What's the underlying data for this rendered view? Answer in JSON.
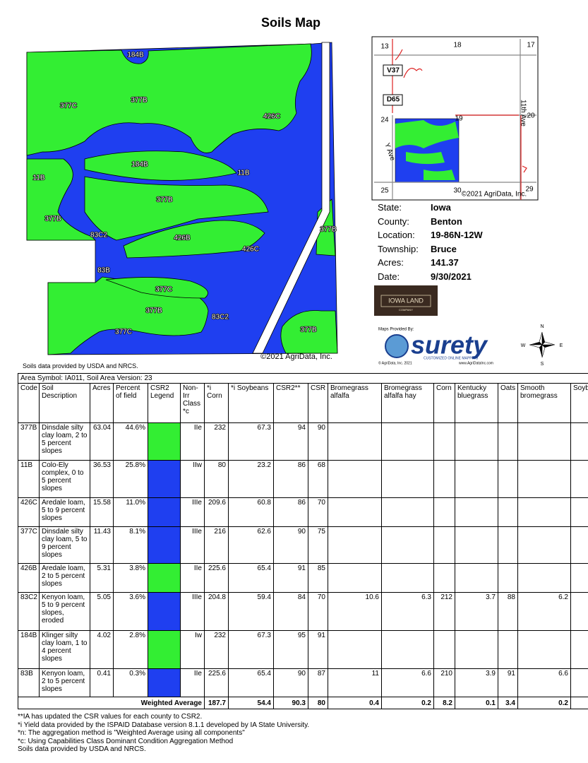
{
  "header": {
    "title": "Soils Map"
  },
  "map": {
    "labels": [
      "184B",
      "377B",
      "377C",
      "426C",
      "11B",
      "184B",
      "11B",
      "377B",
      "377B",
      "83C2",
      "426B",
      "426C",
      "377B",
      "83B",
      "377C",
      "377B",
      "83C2",
      "377C",
      "377B"
    ],
    "copyright": "©2021 AgriData, Inc."
  },
  "inset": {
    "labels": [
      "13",
      "18",
      "17",
      "V37",
      "D65",
      "24",
      "19",
      "20",
      "11th Ave",
      "Y Ave",
      "25",
      "30",
      "29"
    ],
    "copyright": "©2021 AgriData, Inc."
  },
  "info": {
    "rows": [
      [
        "State:",
        "Iowa"
      ],
      [
        "County:",
        "Benton"
      ],
      [
        "Location:",
        "19-86N-12W"
      ],
      [
        "Township:",
        "Bruce"
      ],
      [
        "Acres:",
        "141.37"
      ],
      [
        "Date:",
        "9/30/2021"
      ]
    ]
  },
  "logos": {
    "iowa_land": "IOWA LAND",
    "iowa_land_sub": "COMPANY",
    "maps_by": "Maps Provided By:",
    "surety": "surety",
    "surety_sub": "CUSTOMIZED ONLINE MAPPING",
    "surety_copy": "© AgriData, Inc. 2021",
    "surety_url": "www.AgriDataInc.com"
  },
  "compass": {
    "n": "N",
    "s": "S",
    "e": "E",
    "w": "W"
  },
  "source_note": "Soils data provided by USDA and NRCS.",
  "table": {
    "area_symbol": "Area Symbol: IA011, Soil Area Version: 23",
    "columns": [
      {
        "key": "code",
        "label": "Code"
      },
      {
        "key": "description",
        "label": "Soil Description"
      },
      {
        "key": "acres",
        "label": "Acres"
      },
      {
        "key": "percent",
        "label": "Percent of field"
      },
      {
        "key": "legend",
        "label": "CSR2 Legend"
      },
      {
        "key": "class",
        "label": "Non-Irr Class *c"
      },
      {
        "key": "corn",
        "label": "*i Corn"
      },
      {
        "key": "soybeans",
        "label": "*i Soybeans"
      },
      {
        "key": "csr2",
        "label": "CSR2**"
      },
      {
        "key": "csr",
        "label": "CSR"
      },
      {
        "key": "brom_alf",
        "label": "Bromegrass alfalfa"
      },
      {
        "key": "brom_hay",
        "label": "Bromegrass alfalfa hay"
      },
      {
        "key": "corn2",
        "label": "Corn"
      },
      {
        "key": "ky",
        "label": "Kentucky bluegrass"
      },
      {
        "key": "oats",
        "label": "Oats"
      },
      {
        "key": "smooth",
        "label": "Smooth bromegrass"
      },
      {
        "key": "soyb",
        "label": "Soyb"
      }
    ],
    "rows": [
      {
        "code": "377B",
        "description": "Dinsdale silty clay loam, 2 to 5 percent slopes",
        "acres": "63.04",
        "percent": "44.6%",
        "legend": "#33ee33",
        "class": "IIe",
        "corn": "232",
        "soybeans": "67.3",
        "csr2": "94",
        "csr": "90"
      },
      {
        "code": "11B",
        "description": "Colo-Ely complex, 0 to 5 percent slopes",
        "acres": "36.53",
        "percent": "25.8%",
        "legend": "#1f3ff0",
        "class": "IIw",
        "corn": "80",
        "soybeans": "23.2",
        "csr2": "86",
        "csr": "68"
      },
      {
        "code": "426C",
        "description": "Aredale loam, 5 to 9 percent slopes",
        "acres": "15.58",
        "percent": "11.0%",
        "legend": "#1f3ff0",
        "class": "IIIe",
        "corn": "209.6",
        "soybeans": "60.8",
        "csr2": "86",
        "csr": "70"
      },
      {
        "code": "377C",
        "description": "Dinsdale silty clay loam, 5 to 9 percent slopes",
        "acres": "11.43",
        "percent": "8.1%",
        "legend": "#1f3ff0",
        "class": "IIIe",
        "corn": "216",
        "soybeans": "62.6",
        "csr2": "90",
        "csr": "75"
      },
      {
        "code": "426B",
        "description": "Aredale loam, 2 to 5 percent slopes",
        "acres": "5.31",
        "percent": "3.8%",
        "legend": "#33ee33",
        "class": "IIe",
        "corn": "225.6",
        "soybeans": "65.4",
        "csr2": "91",
        "csr": "85"
      },
      {
        "code": "83C2",
        "description": "Kenyon loam, 5 to 9 percent slopes, eroded",
        "acres": "5.05",
        "percent": "3.6%",
        "legend": "#1f3ff0",
        "class": "IIIe",
        "corn": "204.8",
        "soybeans": "59.4",
        "csr2": "84",
        "csr": "70",
        "brom_alf": "10.6",
        "brom_hay": "6.3",
        "corn2": "212",
        "ky": "3.7",
        "oats": "88",
        "smooth": "6.2"
      },
      {
        "code": "184B",
        "description": "Klinger silty clay loam, 1 to 4 percent slopes",
        "acres": "4.02",
        "percent": "2.8%",
        "legend": "#33ee33",
        "class": "Iw",
        "corn": "232",
        "soybeans": "67.3",
        "csr2": "95",
        "csr": "91"
      },
      {
        "code": "83B",
        "description": "Kenyon loam, 2 to 5 percent slopes",
        "acres": "0.41",
        "percent": "0.3%",
        "legend": "#1f3ff0",
        "class": "IIe",
        "corn": "225.6",
        "soybeans": "65.4",
        "csr2": "90",
        "csr": "87",
        "brom_alf": "11",
        "brom_hay": "6.6",
        "corn2": "210",
        "ky": "3.9",
        "oats": "91",
        "smooth": "6.6"
      }
    ],
    "weighted": {
      "label": "Weighted Average",
      "corn": "187.7",
      "soybeans": "54.4",
      "csr2": "90.3",
      "csr": "80",
      "brom_alf": "0.4",
      "brom_hay": "0.2",
      "corn2": "8.2",
      "ky": "0.1",
      "oats": "3.4",
      "smooth": "0.2"
    }
  },
  "footnotes": [
    "**IA has updated the CSR values for each county to CSR2.",
    "*i Yield data provided by the ISPAID Database version 8.1.1 developed by IA State University.",
    "*n: The aggregation method is \"Weighted Average using all components\"",
    "*c: Using Capabilities Class Dominant Condition Aggregation Method",
    "Soils data provided by USDA and NRCS."
  ]
}
